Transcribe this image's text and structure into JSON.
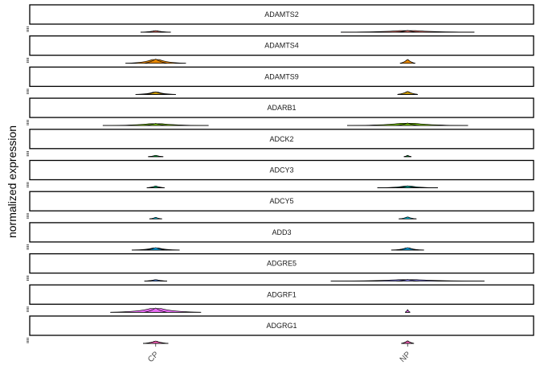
{
  "chart_data": {
    "type": "violin",
    "ylabel": "normalized expression",
    "categories": [
      "CP",
      "NP"
    ],
    "panels": [
      {
        "label": "ADAMTS2",
        "colors": [
          "#F8766D",
          "#F8766D"
        ],
        "violins": [
          {
            "spread": 0.12,
            "width": 0.35
          },
          {
            "spread": 0.53,
            "width": 0.4
          }
        ]
      },
      {
        "label": "ADAMTS4",
        "colors": [
          "#E58700",
          "#E58700"
        ],
        "violins": [
          {
            "spread": 0.24,
            "width": 1.0
          },
          {
            "spread": 0.06,
            "width": 0.9
          }
        ]
      },
      {
        "label": "ADAMTS9",
        "colors": [
          "#C99800",
          "#C99800"
        ],
        "violins": [
          {
            "spread": 0.16,
            "width": 0.6
          },
          {
            "spread": 0.08,
            "width": 0.7
          }
        ]
      },
      {
        "label": "ADARB1",
        "colors": [
          "#6BB100",
          "#6BB100"
        ],
        "violins": [
          {
            "spread": 0.42,
            "width": 0.5
          },
          {
            "spread": 0.48,
            "width": 0.6
          }
        ]
      },
      {
        "label": "ADCK2",
        "colors": [
          "#00BA38",
          "#00BA38"
        ],
        "violins": [
          {
            "spread": 0.06,
            "width": 0.3
          },
          {
            "spread": 0.03,
            "width": 0.3
          }
        ]
      },
      {
        "label": "ADCY3",
        "colors": [
          "#00BF7D",
          "#00C0AF"
        ],
        "violins": [
          {
            "spread": 0.07,
            "width": 0.4
          },
          {
            "spread": 0.24,
            "width": 0.45
          }
        ]
      },
      {
        "label": "ADCY5",
        "colors": [
          "#00BCD8",
          "#00BCD8"
        ],
        "violins": [
          {
            "spread": 0.05,
            "width": 0.35
          },
          {
            "spread": 0.07,
            "width": 0.45
          }
        ]
      },
      {
        "label": "ADD3",
        "colors": [
          "#00B0F6",
          "#00B0F6"
        ],
        "violins": [
          {
            "spread": 0.19,
            "width": 0.55
          },
          {
            "spread": 0.13,
            "width": 0.55
          }
        ]
      },
      {
        "label": "ADGRE5",
        "colors": [
          "#619CFF",
          "#9590FF"
        ],
        "violins": [
          {
            "spread": 0.09,
            "width": 0.35
          },
          {
            "spread": 0.61,
            "width": 0.4
          }
        ]
      },
      {
        "label": "ADGRF1",
        "colors": [
          "#E76BF3",
          "#E76BF3"
        ],
        "violins": [
          {
            "spread": 0.36,
            "width": 1.0
          },
          {
            "spread": 0.02,
            "width": 0.6
          }
        ]
      },
      {
        "label": "ADGRG1",
        "colors": [
          "#FF62BC",
          "#FF62BC"
        ],
        "violins": [
          {
            "spread": 0.1,
            "width": 0.55
          },
          {
            "spread": 0.05,
            "width": 0.6
          }
        ]
      }
    ]
  }
}
